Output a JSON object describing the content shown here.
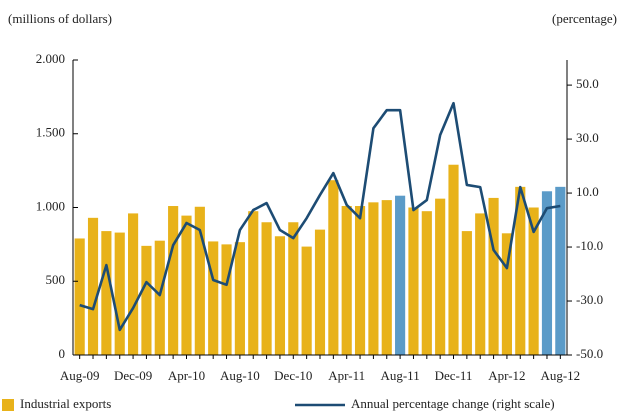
{
  "chart_data": {
    "type": "bar_line",
    "y_axis_label": "(millions of dollars)",
    "y2_axis_label": "(percentage)",
    "categories": [
      "Aug-09",
      null,
      null,
      null,
      "Dec-09",
      null,
      null,
      null,
      "Apr-10",
      null,
      null,
      null,
      "Aug-10",
      null,
      null,
      null,
      "Dec-10",
      null,
      null,
      null,
      "Apr-11",
      null,
      null,
      null,
      "Aug-11",
      null,
      null,
      null,
      "Dec-11",
      null,
      null,
      null,
      "Apr-12",
      null,
      null,
      null,
      "Aug-12"
    ],
    "series": [
      {
        "name": "Industrial exports",
        "type": "bar",
        "color": "#e8b21a",
        "colors": [
          "#e8b21a",
          "#e8b21a",
          "#e8b21a",
          "#e8b21a",
          "#e8b21a",
          "#e8b21a",
          "#e8b21a",
          "#e8b21a",
          "#e8b21a",
          "#e8b21a",
          "#e8b21a",
          "#e8b21a",
          "#e8b21a",
          "#e8b21a",
          "#e8b21a",
          "#e8b21a",
          "#e8b21a",
          "#e8b21a",
          "#e8b21a",
          "#e8b21a",
          "#e8b21a",
          "#e8b21a",
          "#e8b21a",
          "#e8b21a",
          "#5b9bc8",
          "#e8b21a",
          "#e8b21a",
          "#e8b21a",
          "#e8b21a",
          "#e8b21a",
          "#e8b21a",
          "#e8b21a",
          "#e8b21a",
          "#e8b21a",
          "#e8b21a",
          "#5b9bc8",
          "#5b9bc8"
        ],
        "values": [
          790,
          930,
          840,
          830,
          960,
          740,
          775,
          1010,
          945,
          1005,
          770,
          750,
          765,
          975,
          900,
          805,
          900,
          735,
          850,
          1185,
          1010,
          1010,
          1035,
          1050,
          1080,
          1000,
          975,
          1060,
          1290,
          840,
          960,
          1065,
          825,
          1140,
          1000,
          1110,
          1140
        ]
      },
      {
        "name": "Annual percentage change (right scale)",
        "type": "line",
        "color": "#1d4c74",
        "axis": "y2",
        "values": [
          -31.5,
          -33,
          -16.7,
          -40.7,
          -32.6,
          -23,
          -27.8,
          -9.3,
          -1.1,
          -3.7,
          -22.2,
          -24,
          -3.7,
          3.7,
          6.3,
          -3.7,
          -6.7,
          0.7,
          9.3,
          17.4,
          5.6,
          0.7,
          34,
          40.7,
          40.7,
          3.7,
          7.4,
          31.5,
          43.3,
          13,
          12.2,
          -11.1,
          -17.8,
          12.2,
          -4.4,
          4.4,
          5.2
        ]
      }
    ],
    "ylim": [
      0,
      2000
    ],
    "yticks": [
      0,
      500,
      {
        "value": 1000,
        "label": "1.000"
      },
      {
        "value": 1500,
        "label": "1.500"
      },
      {
        "value": 2000,
        "label": "2.000"
      }
    ],
    "y2lim": [
      -50,
      59.3
    ],
    "y2ticks": [
      {
        "value": -50,
        "label": "-50.0"
      },
      {
        "value": -30,
        "label": "-30.0"
      },
      {
        "value": -10,
        "label": "-10.0"
      },
      {
        "value": 10,
        "label": "10.0"
      },
      {
        "value": 30,
        "label": "30.0"
      },
      {
        "value": 50,
        "label": "50.0"
      }
    ],
    "grid": false,
    "legend": "bottom"
  }
}
